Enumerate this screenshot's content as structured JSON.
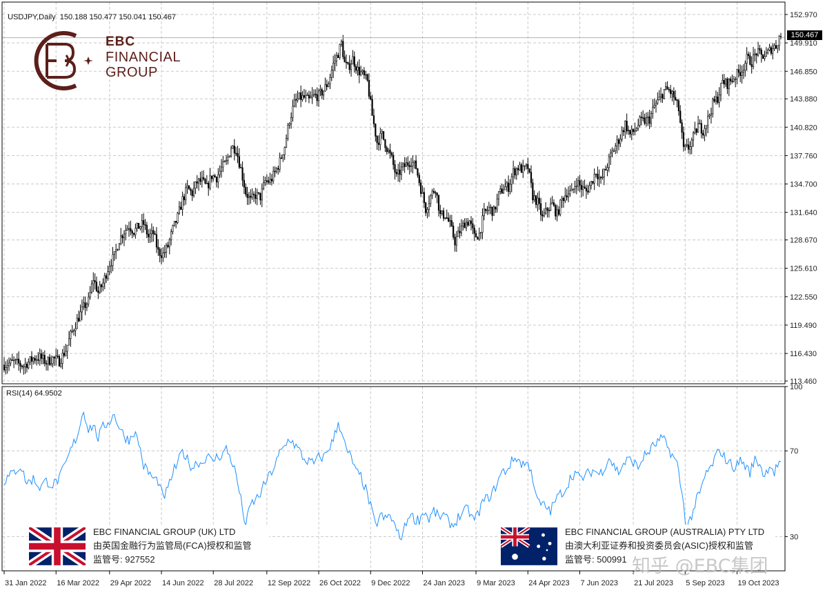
{
  "header": {
    "symbol": "USDJPY,Daily",
    "ohlc": "150.188 150.477 150.041 150.467",
    "last_price_label": "150.467"
  },
  "rsi_panel": {
    "label": "RSI(14) 64.9502"
  },
  "logo": {
    "line1": "EBC",
    "line2": "FINANCIAL",
    "line3": "GROUP"
  },
  "badges": [
    {
      "title": "EBC FINANCIAL GROUP (UK) LTD",
      "line2": "由英国金融行为监管局(FCA)授权和监管",
      "line3": "监管号: 927552",
      "flag": "uk-flag"
    },
    {
      "title": "EBC FINANCIAL GROUP (AUSTRALIA) PTY LTD",
      "line2": "由澳大利亚证券和投资委员会(ASIC)授权和监管",
      "line3": "监管号: 500991",
      "flag": "australia-flag"
    }
  ],
  "watermark": "知乎 @EBC集团",
  "colors": {
    "candles": "#000000",
    "rsi_line": "#1e90ff",
    "grid": "#c8c8c8",
    "logo": "#5c1f1a"
  },
  "chart_data": [
    {
      "type": "candlestick",
      "title": "USDJPY,Daily",
      "x_tick_labels": [
        "31 Jan 2022",
        "16 Mar 2022",
        "29 Apr 2022",
        "14 Jun 2022",
        "28 Jul 2022",
        "12 Sep 2022",
        "26 Oct 2022",
        "9 Dec 2022",
        "24 Jan 2023",
        "9 Mar 2023",
        "24 Apr 2023",
        "7 Jun 2023",
        "21 Jul 2023",
        "5 Sep 2023",
        "19 Oct 2023"
      ],
      "y_tick_labels": [
        "152.970",
        "149.910",
        "146.850",
        "143.880",
        "140.820",
        "137.760",
        "134.700",
        "131.640",
        "128.670",
        "125.610",
        "122.550",
        "119.490",
        "116.430",
        "113.460"
      ],
      "ylim": [
        113.46,
        152.97
      ],
      "grid": true,
      "series_anchor_closes": [
        [
          0,
          115.2
        ],
        [
          6,
          115.5
        ],
        [
          12,
          115.1
        ],
        [
          18,
          115.9
        ],
        [
          22,
          116.0
        ],
        [
          26,
          115.5
        ],
        [
          30,
          115.9
        ],
        [
          34,
          115.6
        ],
        [
          36,
          116.2
        ],
        [
          38,
          116.8
        ],
        [
          41,
          118.4
        ],
        [
          45,
          120.0
        ],
        [
          49,
          121.4
        ],
        [
          52,
          122.1
        ],
        [
          55,
          124.5
        ],
        [
          58,
          123.0
        ],
        [
          61,
          124.0
        ],
        [
          65,
          126.1
        ],
        [
          68,
          126.9
        ],
        [
          71,
          128.7
        ],
        [
          74,
          129.6
        ],
        [
          77,
          130.2
        ],
        [
          80,
          129.6
        ],
        [
          83,
          130.1
        ],
        [
          86,
          130.4
        ],
        [
          89,
          129.0
        ],
        [
          92,
          129.4
        ],
        [
          95,
          127.4
        ],
        [
          98,
          127.1
        ],
        [
          101,
          128.0
        ],
        [
          104,
          129.8
        ],
        [
          107,
          131.1
        ],
        [
          110,
          133.0
        ],
        [
          113,
          134.2
        ],
        [
          116,
          133.7
        ],
        [
          119,
          134.9
        ],
        [
          122,
          135.0
        ],
        [
          125,
          134.3
        ],
        [
          128,
          135.6
        ],
        [
          131,
          135.4
        ],
        [
          134,
          136.4
        ],
        [
          137,
          137.0
        ],
        [
          140,
          138.7
        ],
        [
          143,
          138.5
        ],
        [
          146,
          136.3
        ],
        [
          149,
          133.8
        ],
        [
          152,
          132.9
        ],
        [
          155,
          133.5
        ],
        [
          158,
          133.3
        ],
        [
          161,
          135.0
        ],
        [
          164,
          135.0
        ],
        [
          167,
          135.9
        ],
        [
          170,
          137.1
        ],
        [
          173,
          138.8
        ],
        [
          176,
          141.6
        ],
        [
          179,
          143.4
        ],
        [
          182,
          144.0
        ],
        [
          185,
          144.0
        ],
        [
          188,
          143.7
        ],
        [
          191,
          144.2
        ],
        [
          194,
          144.2
        ],
        [
          197,
          144.8
        ],
        [
          200,
          145.7
        ],
        [
          203,
          147.6
        ],
        [
          206,
          148.8
        ],
        [
          208,
          149.9
        ],
        [
          210,
          147.7
        ],
        [
          212,
          147.2
        ],
        [
          215,
          148.2
        ],
        [
          218,
          147.0
        ],
        [
          221,
          146.5
        ],
        [
          224,
          145.7
        ],
        [
          227,
          142.1
        ],
        [
          230,
          139.2
        ],
        [
          233,
          140.0
        ],
        [
          236,
          138.6
        ],
        [
          239,
          137.4
        ],
        [
          242,
          135.4
        ],
        [
          245,
          136.3
        ],
        [
          248,
          136.8
        ],
        [
          251,
          137.2
        ],
        [
          254,
          136.5
        ],
        [
          257,
          134.2
        ],
        [
          260,
          132.0
        ],
        [
          263,
          133.4
        ],
        [
          266,
          134.3
        ],
        [
          269,
          131.3
        ],
        [
          272,
          131.4
        ],
        [
          275,
          130.3
        ],
        [
          278,
          128.5
        ],
        [
          281,
          129.6
        ],
        [
          284,
          130.5
        ],
        [
          287,
          130.7
        ],
        [
          290,
          129.0
        ],
        [
          293,
          129.3
        ],
        [
          296,
          131.5
        ],
        [
          299,
          132.1
        ],
        [
          302,
          131.7
        ],
        [
          305,
          133.5
        ],
        [
          308,
          134.3
        ],
        [
          311,
          134.4
        ],
        [
          314,
          136.0
        ],
        [
          317,
          136.5
        ],
        [
          320,
          136.2
        ],
        [
          323,
          136.5
        ],
        [
          326,
          133.4
        ],
        [
          329,
          132.7
        ],
        [
          332,
          131.0
        ],
        [
          335,
          132.0
        ],
        [
          338,
          132.5
        ],
        [
          341,
          131.4
        ],
        [
          344,
          133.0
        ],
        [
          347,
          133.8
        ],
        [
          350,
          133.7
        ],
        [
          353,
          135.0
        ],
        [
          356,
          134.3
        ],
        [
          359,
          133.9
        ],
        [
          362,
          134.8
        ],
        [
          365,
          136.1
        ],
        [
          368,
          135.0
        ],
        [
          371,
          136.3
        ],
        [
          374,
          137.7
        ],
        [
          377,
          138.8
        ],
        [
          380,
          139.8
        ],
        [
          383,
          141.2
        ],
        [
          386,
          140.0
        ],
        [
          389,
          140.5
        ],
        [
          392,
          141.4
        ],
        [
          395,
          141.5
        ],
        [
          398,
          141.7
        ],
        [
          401,
          143.1
        ],
        [
          404,
          143.8
        ],
        [
          407,
          144.8
        ],
        [
          410,
          144.8
        ],
        [
          413,
          144.1
        ],
        [
          416,
          142.7
        ],
        [
          419,
          138.4
        ],
        [
          422,
          138.6
        ],
        [
          425,
          139.7
        ],
        [
          428,
          141.0
        ],
        [
          431,
          140.5
        ],
        [
          434,
          141.7
        ],
        [
          437,
          143.3
        ],
        [
          440,
          144.0
        ],
        [
          443,
          145.7
        ],
        [
          446,
          145.5
        ],
        [
          449,
          146.0
        ],
        [
          452,
          146.5
        ],
        [
          455,
          147.0
        ],
        [
          458,
          148.2
        ],
        [
          461,
          147.9
        ],
        [
          464,
          148.9
        ],
        [
          467,
          148.5
        ],
        [
          470,
          148.6
        ],
        [
          473,
          149.3
        ],
        [
          476,
          149.6
        ],
        [
          478,
          150.5
        ]
      ],
      "last_close": 150.467
    },
    {
      "type": "line",
      "title": "RSI(14) 64.9502",
      "y_tick_labels": [
        "100",
        "70",
        "30"
      ],
      "ylim": [
        15,
        100
      ],
      "series_anchor_values": [
        [
          0,
          56
        ],
        [
          6,
          60
        ],
        [
          10,
          63
        ],
        [
          14,
          55
        ],
        [
          18,
          57
        ],
        [
          22,
          53
        ],
        [
          26,
          56
        ],
        [
          30,
          54
        ],
        [
          34,
          57
        ],
        [
          38,
          64
        ],
        [
          42,
          72
        ],
        [
          45,
          77
        ],
        [
          49,
          89
        ],
        [
          52,
          80
        ],
        [
          55,
          82
        ],
        [
          58,
          76
        ],
        [
          61,
          81
        ],
        [
          65,
          84
        ],
        [
          68,
          87
        ],
        [
          71,
          81
        ],
        [
          74,
          77
        ],
        [
          77,
          75
        ],
        [
          80,
          79
        ],
        [
          83,
          74
        ],
        [
          86,
          63
        ],
        [
          89,
          60
        ],
        [
          92,
          57
        ],
        [
          95,
          56
        ],
        [
          98,
          48
        ],
        [
          101,
          52
        ],
        [
          104,
          60
        ],
        [
          107,
          64
        ],
        [
          110,
          70
        ],
        [
          113,
          66
        ],
        [
          116,
          62
        ],
        [
          119,
          65
        ],
        [
          122,
          64
        ],
        [
          125,
          68
        ],
        [
          128,
          65
        ],
        [
          131,
          67
        ],
        [
          134,
          68
        ],
        [
          137,
          71
        ],
        [
          140,
          66
        ],
        [
          143,
          59
        ],
        [
          146,
          47
        ],
        [
          149,
          35
        ],
        [
          152,
          45
        ],
        [
          155,
          47
        ],
        [
          158,
          50
        ],
        [
          161,
          55
        ],
        [
          164,
          59
        ],
        [
          167,
          63
        ],
        [
          170,
          69
        ],
        [
          173,
          72
        ],
        [
          176,
          76
        ],
        [
          179,
          73
        ],
        [
          182,
          70
        ],
        [
          185,
          66
        ],
        [
          188,
          65
        ],
        [
          191,
          64
        ],
        [
          194,
          67
        ],
        [
          197,
          67
        ],
        [
          200,
          71
        ],
        [
          203,
          75
        ],
        [
          206,
          83
        ],
        [
          208,
          80
        ],
        [
          211,
          70
        ],
        [
          214,
          67
        ],
        [
          217,
          60
        ],
        [
          220,
          58
        ],
        [
          223,
          52
        ],
        [
          226,
          44
        ],
        [
          229,
          35
        ],
        [
          232,
          40
        ],
        [
          235,
          38
        ],
        [
          238,
          40
        ],
        [
          241,
          35
        ],
        [
          244,
          29
        ],
        [
          247,
          34
        ],
        [
          250,
          41
        ],
        [
          253,
          38
        ],
        [
          256,
          38
        ],
        [
          259,
          42
        ],
        [
          262,
          38
        ],
        [
          265,
          42
        ],
        [
          268,
          39
        ],
        [
          271,
          40
        ],
        [
          274,
          37
        ],
        [
          277,
          35
        ],
        [
          280,
          39
        ],
        [
          283,
          41
        ],
        [
          286,
          43
        ],
        [
          289,
          38
        ],
        [
          292,
          40
        ],
        [
          295,
          46
        ],
        [
          298,
          48
        ],
        [
          301,
          50
        ],
        [
          304,
          55
        ],
        [
          307,
          60
        ],
        [
          310,
          61
        ],
        [
          313,
          65
        ],
        [
          316,
          67
        ],
        [
          319,
          64
        ],
        [
          322,
          64
        ],
        [
          325,
          62
        ],
        [
          328,
          48
        ],
        [
          331,
          45
        ],
        [
          334,
          44
        ],
        [
          337,
          42
        ],
        [
          340,
          47
        ],
        [
          343,
          50
        ],
        [
          346,
          52
        ],
        [
          349,
          57
        ],
        [
          352,
          60
        ],
        [
          355,
          57
        ],
        [
          358,
          58
        ],
        [
          361,
          60
        ],
        [
          364,
          61
        ],
        [
          367,
          59
        ],
        [
          370,
          62
        ],
        [
          373,
          67
        ],
        [
          376,
          63
        ],
        [
          379,
          60
        ],
        [
          382,
          64
        ],
        [
          385,
          66
        ],
        [
          388,
          65
        ],
        [
          391,
          62
        ],
        [
          394,
          67
        ],
        [
          397,
          69
        ],
        [
          400,
          72
        ],
        [
          403,
          74
        ],
        [
          406,
          76
        ],
        [
          409,
          72
        ],
        [
          412,
          68
        ],
        [
          415,
          64
        ],
        [
          418,
          50
        ],
        [
          421,
          34
        ],
        [
          424,
          40
        ],
        [
          427,
          47
        ],
        [
          430,
          52
        ],
        [
          433,
          60
        ],
        [
          436,
          62
        ],
        [
          439,
          68
        ],
        [
          442,
          70
        ],
        [
          445,
          66
        ],
        [
          448,
          64
        ],
        [
          451,
          62
        ],
        [
          454,
          66
        ],
        [
          457,
          63
        ],
        [
          460,
          60
        ],
        [
          463,
          66
        ],
        [
          466,
          64
        ],
        [
          469,
          58
        ],
        [
          472,
          64
        ],
        [
          475,
          60
        ],
        [
          478,
          65
        ]
      ],
      "last_value": 64.9502
    }
  ]
}
